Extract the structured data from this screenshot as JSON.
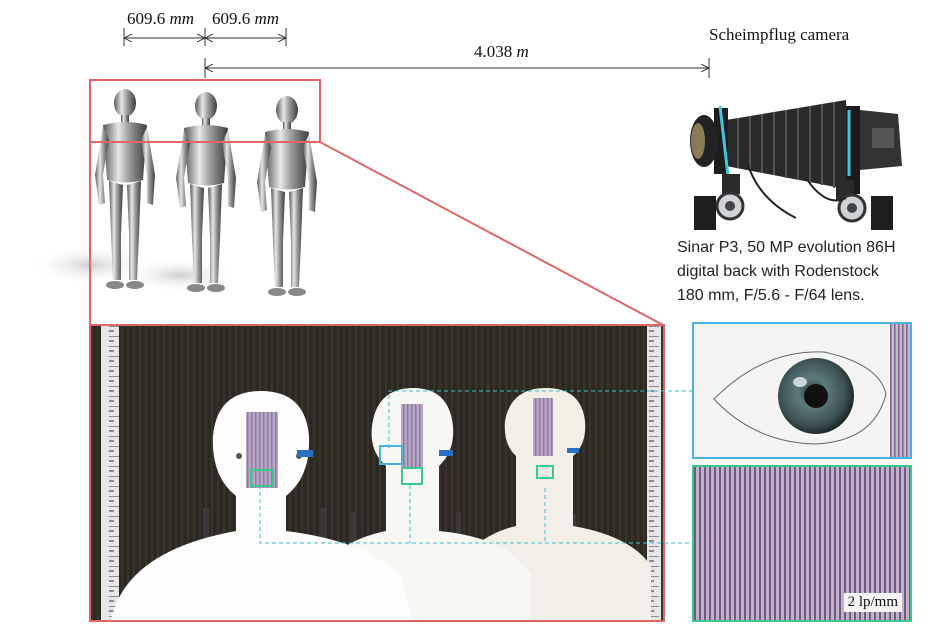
{
  "dimensions": {
    "spacing_1": {
      "value": "609.6",
      "unit": "mm"
    },
    "spacing_2": {
      "value": "609.6",
      "unit": "mm"
    },
    "distance": {
      "value": "4.038",
      "unit": "m"
    }
  },
  "camera": {
    "title": "Scheimpflug camera",
    "desc_line1": "Sinar P3, 50 MP evolution 86H",
    "desc_line2": "digital back with Rodenstock",
    "desc_line3": "180 mm, F/5.6 - F/64 lens."
  },
  "insets": {
    "resolution_label": "2 lp/mm"
  },
  "colors": {
    "frame_red": "#e06666",
    "eye_cyan": "#4ab0e0",
    "chart_green": "#3cc88a",
    "leader_cyan": "#3bbfcf"
  }
}
